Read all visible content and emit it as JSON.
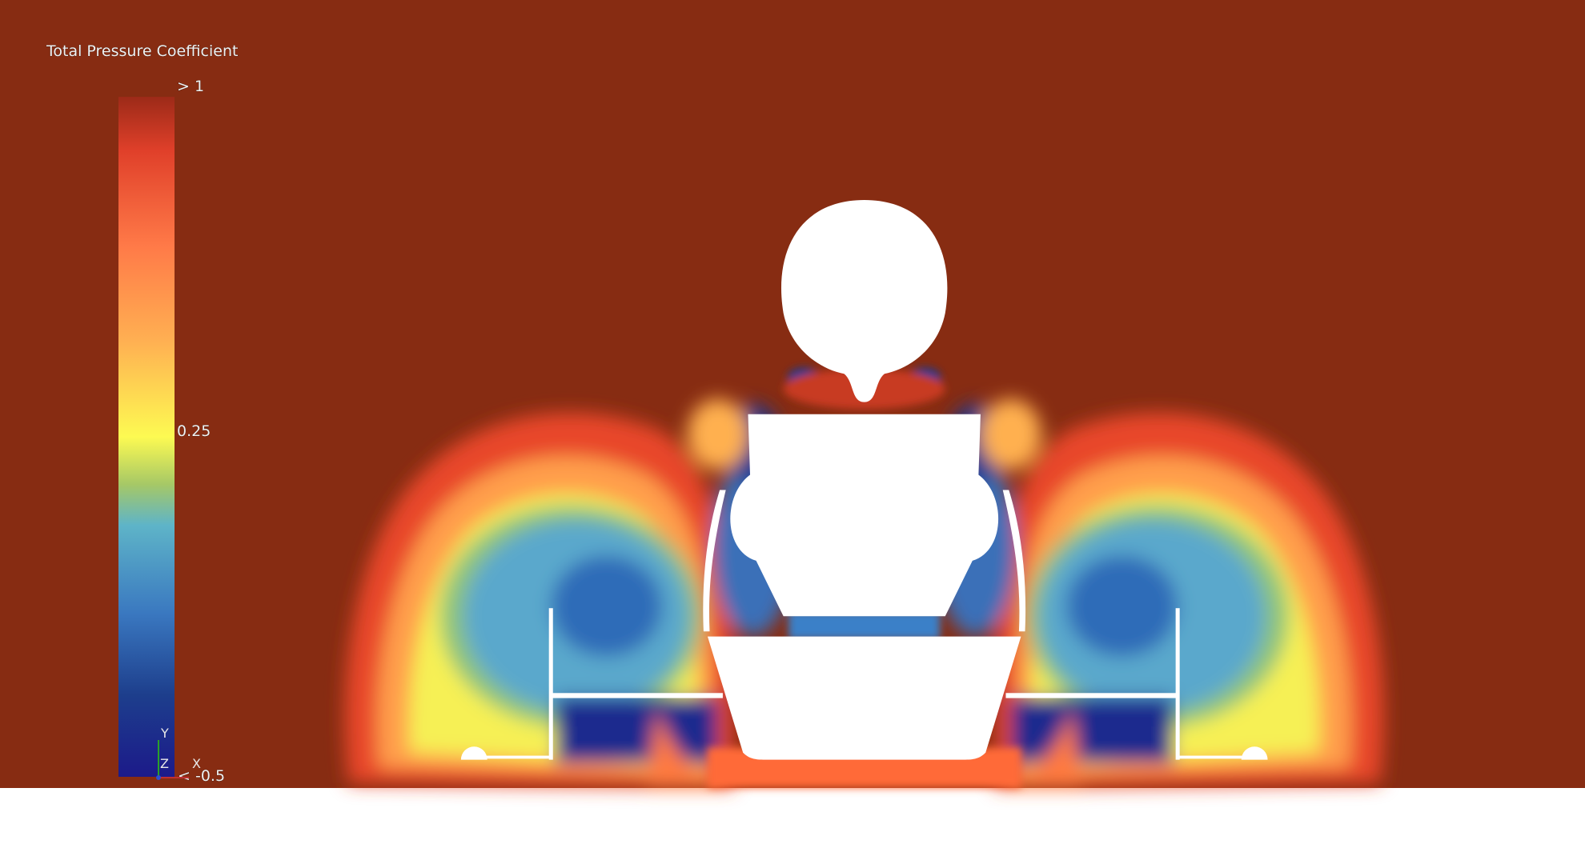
{
  "legend": {
    "title": "Total Pressure Coefficient",
    "max_label": "> 1",
    "mid_label": "0.25",
    "min_label": "< -0.5"
  },
  "axes_triad": {
    "y": "Y",
    "z": "Z",
    "x": "X"
  }
}
